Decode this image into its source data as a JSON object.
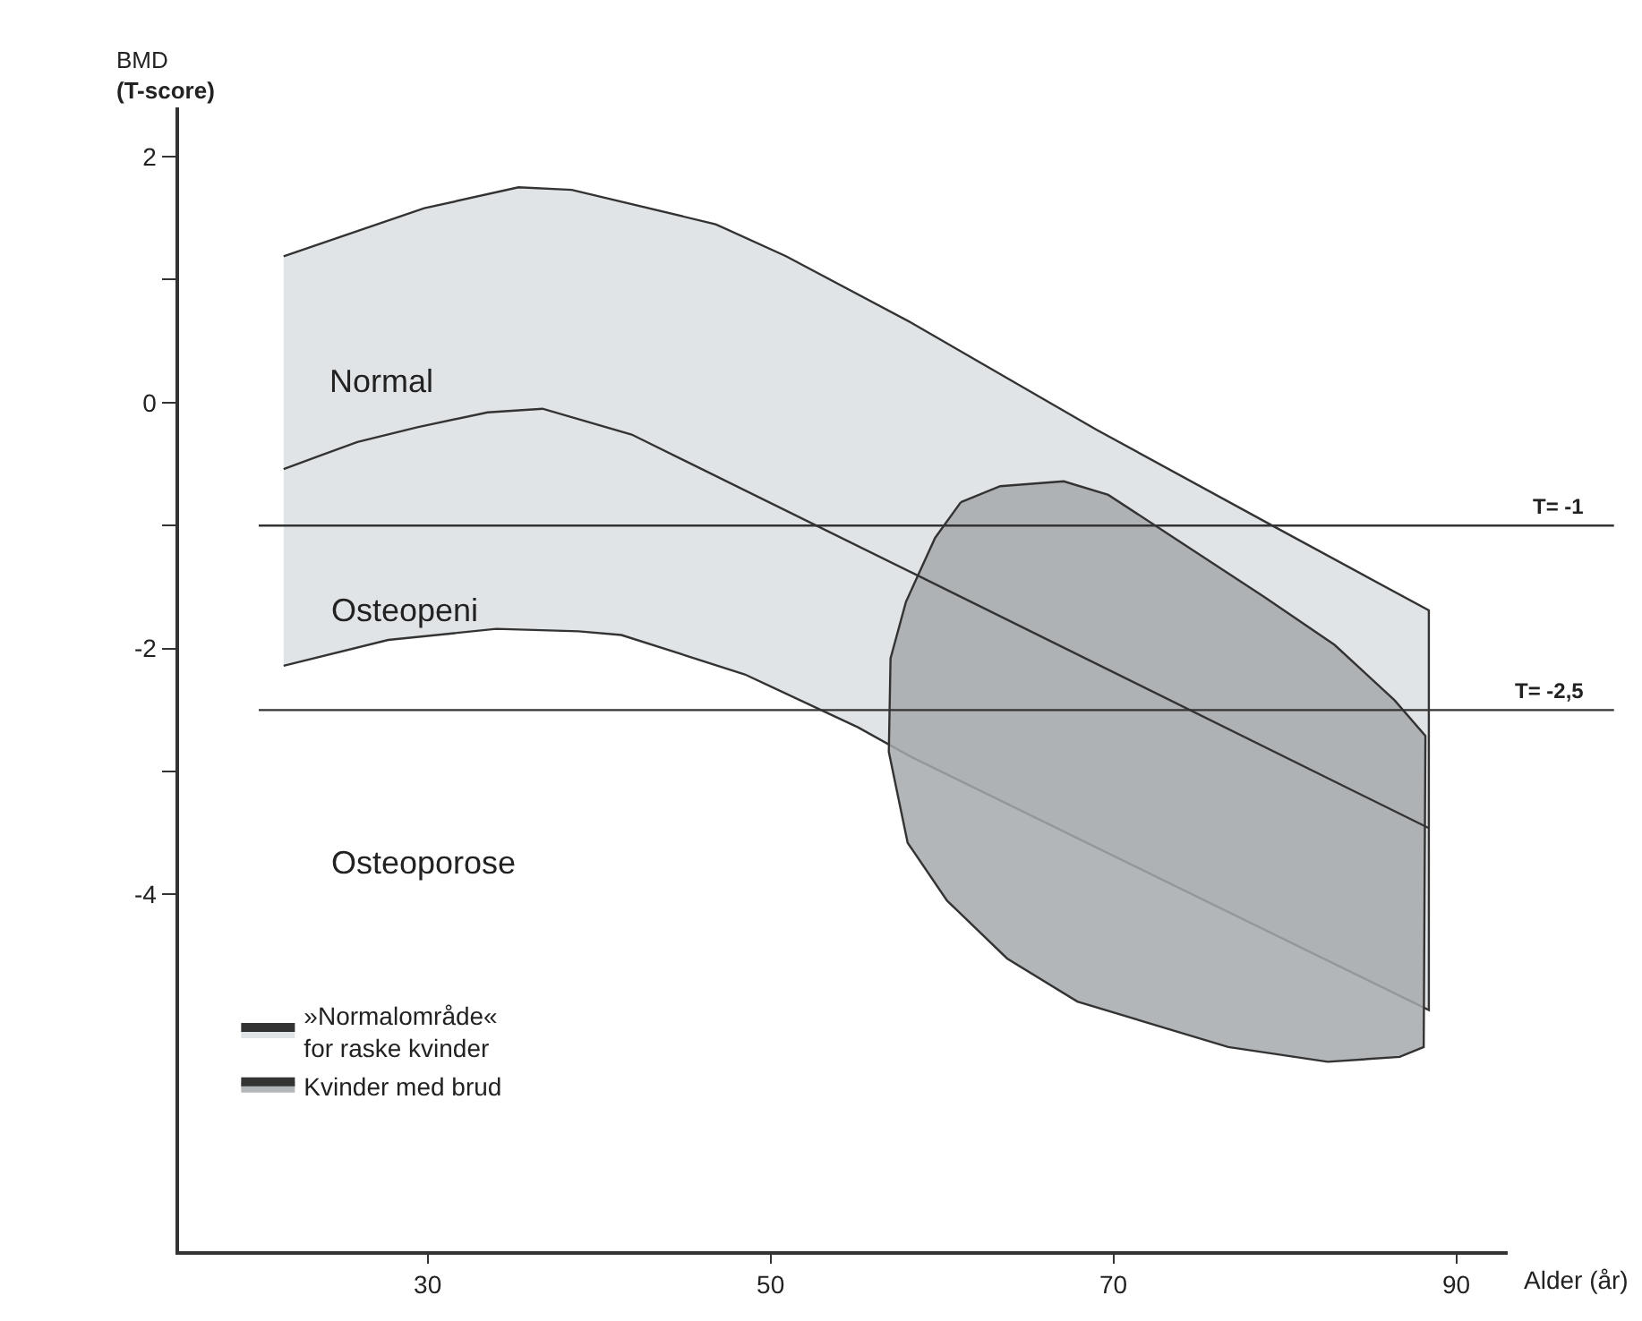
{
  "chart_data": {
    "type": "area",
    "ylabel": "BMD\n(T-score)",
    "xlabel": "Alder (år)",
    "xlim": [
      15.5,
      93
    ],
    "xticks": [
      30,
      50,
      70,
      90
    ],
    "ylim": [
      -6.9,
      2.4
    ],
    "yticks": [
      2,
      {
        "value": 1,
        "label": null
      },
      0,
      {
        "value": -1,
        "label": null
      },
      -2,
      {
        "value": -3,
        "label": null
      },
      -4
    ],
    "legend": "bottom left",
    "series": [
      {
        "name": "»Normalområde«\nfor raske kvinder",
        "color": "#dcdfe2",
        "x": [
          21.6,
          29.8,
          35.3,
          38.4,
          46.8,
          50.9,
          58.2,
          69,
          79.4,
          88.4,
          88.4,
          58.2,
          55.1,
          48.5,
          41.3,
          38.8,
          34,
          27.7,
          21.6
        ],
        "values": [
          1.19,
          1.58,
          1.75,
          1.73,
          1.45,
          1.19,
          0.65,
          -0.22,
          -1.01,
          -1.69,
          -4.94,
          -2.88,
          -2.64,
          -2.21,
          -1.89,
          -1.86,
          -1.84,
          -1.93,
          -2.14
        ]
      },
      {
        "name": "Kvinder med brud",
        "color": "#a5a9ac",
        "x": [
          61.1,
          63.4,
          67.1,
          69.7,
          73.1,
          78.8,
          82.9,
          86.4,
          88.2,
          88.1,
          86.7,
          82.5,
          76.7,
          67.9,
          63.8,
          60.3,
          58,
          56.9,
          57,
          57.9,
          59.6,
          61.1
        ],
        "values": [
          -0.81,
          -0.68,
          -0.64,
          -0.75,
          -1.06,
          -1.58,
          -1.97,
          -2.42,
          -2.71,
          -5.24,
          -5.32,
          -5.36,
          -5.24,
          -4.87,
          -4.52,
          -4.05,
          -3.58,
          -2.84,
          -2.08,
          -1.62,
          -1.1,
          -0.81
        ]
      },
      {
        "type": "line",
        "color": "#333333",
        "x": [
          21.6,
          25.9,
          29.4,
          33.5,
          36.7,
          41.9,
          58.2,
          88.4
        ],
        "values": [
          -0.54,
          -0.32,
          -0.2,
          -0.08,
          -0.05,
          -0.26,
          -1.38,
          -3.46
        ]
      }
    ],
    "ref_lines": [
      {
        "axis": "y",
        "value": -1,
        "label": "T= -1"
      },
      {
        "axis": "y",
        "value": -2.5,
        "label": "T= -2,5"
      }
    ],
    "annotations": [
      "Normal",
      "Osteopeni",
      "Osteoporose"
    ]
  }
}
